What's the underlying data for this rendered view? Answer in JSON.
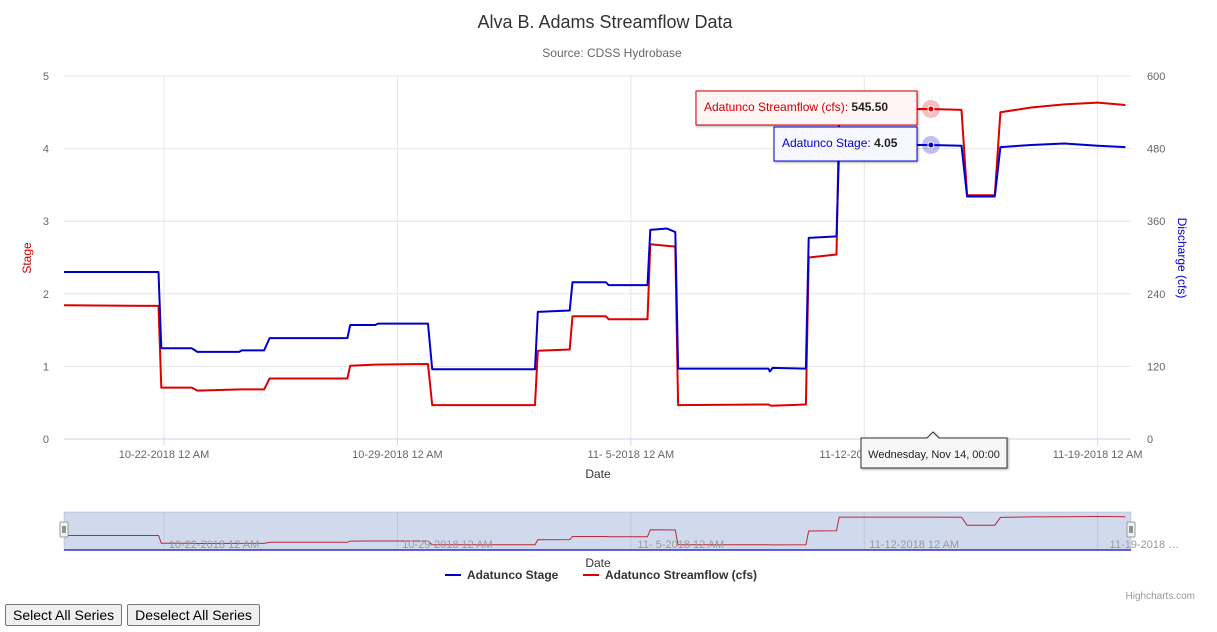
{
  "chart_data": {
    "type": "line",
    "title": "Alva B. Adams Streamflow Data",
    "subtitle": "Source: CDSS Hydrobase",
    "xlabel": "Date",
    "x_ticks": [
      "10-22-2018 12 AM",
      "10-29-2018 12 AM",
      "11- 5-2018 12 AM",
      "11-12-2018 12 AM",
      "11-19-2018 12 AM"
    ],
    "x_range_days": [
      "10-19-2018",
      "11-20-2018"
    ],
    "y_left": {
      "label": "Stage",
      "ticks": [
        0,
        1,
        2,
        3,
        4,
        5
      ],
      "range": [
        0,
        5
      ],
      "color": "#cc0000"
    },
    "y_right": {
      "label": "Discharge (cfs)",
      "ticks": [
        0,
        120,
        240,
        360,
        480,
        600
      ],
      "range": [
        0,
        600
      ],
      "color": "#0000cc"
    },
    "grid": true,
    "legend_position": "bottom-center",
    "series": [
      {
        "name": "Adatunco Stage",
        "color": "#0000cc",
        "axis": "left",
        "points": [
          [
            "10-19-2018 00:00",
            2.3
          ],
          [
            "10-21-2018 20:00",
            2.3
          ],
          [
            "10-21-2018 22:00",
            1.25
          ],
          [
            "10-22-2018 20:00",
            1.25
          ],
          [
            "10-23-2018 00:00",
            1.2
          ],
          [
            "10-24-2018 06:00",
            1.2
          ],
          [
            "10-24-2018 08:00",
            1.22
          ],
          [
            "10-25-2018 00:00",
            1.22
          ],
          [
            "10-25-2018 04:00",
            1.39
          ],
          [
            "10-27-2018 12:00",
            1.39
          ],
          [
            "10-27-2018 14:00",
            1.57
          ],
          [
            "10-28-2018 08:00",
            1.57
          ],
          [
            "10-28-2018 10:00",
            1.59
          ],
          [
            "10-29-2018 22:00",
            1.59
          ],
          [
            "10-30-2018 01:00",
            0.96
          ],
          [
            "11-2-2018 03:00",
            0.96
          ],
          [
            "11-2-2018 05:00",
            1.75
          ],
          [
            "11-3-2018 04:00",
            1.77
          ],
          [
            "11-3-2018 06:00",
            2.16
          ],
          [
            "11-4-2018 06:00",
            2.16
          ],
          [
            "11-4-2018 08:00",
            2.12
          ],
          [
            "11-5-2018 12:00",
            2.12
          ],
          [
            "11-5-2018 14:00",
            2.88
          ],
          [
            "11-6-2018 02:00",
            2.9
          ],
          [
            "11-6-2018 08:00",
            2.85
          ],
          [
            "11-6-2018 10:00",
            0.97
          ],
          [
            "11-9-2018 03:00",
            0.97
          ],
          [
            "11-9-2018 04:00",
            0.93
          ],
          [
            "11-9-2018 06:00",
            0.98
          ],
          [
            "11-10-2018 06:00",
            0.97
          ],
          [
            "11-10-2018 08:00",
            2.77
          ],
          [
            "11-11-2018 04:00",
            2.79
          ],
          [
            "11-11-2018 06:00",
            4.05
          ],
          [
            "11-13-2018 08:00",
            4.05
          ],
          [
            "11-14-2018 00:00",
            4.05
          ],
          [
            "11-14-2018 22:00",
            4.04
          ],
          [
            "11-15-2018 02:00",
            3.34
          ],
          [
            "11-15-2018 22:00",
            3.34
          ],
          [
            "11-16-2018 02:00",
            4.02
          ],
          [
            "11-17-2018 00:00",
            4.05
          ],
          [
            "11-18-2018 00:00",
            4.07
          ],
          [
            "11-19-2018 00:00",
            4.04
          ],
          [
            "11-19-2018 20:00",
            4.02
          ]
        ]
      },
      {
        "name": "Adatunco Streamflow (cfs)",
        "color": "#dd0000",
        "axis": "right",
        "points": [
          [
            "10-19-2018 00:00",
            221
          ],
          [
            "10-21-2018 20:00",
            220
          ],
          [
            "10-21-2018 22:00",
            85
          ],
          [
            "10-22-2018 20:00",
            85
          ],
          [
            "10-23-2018 00:00",
            80
          ],
          [
            "10-24-2018 08:00",
            82
          ],
          [
            "10-25-2018 00:00",
            82
          ],
          [
            "10-25-2018 04:00",
            100
          ],
          [
            "10-27-2018 12:00",
            100
          ],
          [
            "10-27-2018 14:00",
            121
          ],
          [
            "10-28-2018 08:00",
            123
          ],
          [
            "10-29-2018 22:00",
            124
          ],
          [
            "10-30-2018 01:00",
            56
          ],
          [
            "11-2-2018 03:00",
            56
          ],
          [
            "11-2-2018 05:00",
            146
          ],
          [
            "11-3-2018 04:00",
            148
          ],
          [
            "11-3-2018 06:00",
            203
          ],
          [
            "11-4-2018 06:00",
            203
          ],
          [
            "11-4-2018 08:00",
            198
          ],
          [
            "11-5-2018 12:00",
            198
          ],
          [
            "11-5-2018 14:00",
            322
          ],
          [
            "11-6-2018 08:00",
            318
          ],
          [
            "11-6-2018 10:00",
            56
          ],
          [
            "11-9-2018 03:00",
            57
          ],
          [
            "11-9-2018 05:00",
            55
          ],
          [
            "11-10-2018 06:00",
            57
          ],
          [
            "11-10-2018 08:00",
            300
          ],
          [
            "11-11-2018 04:00",
            305
          ],
          [
            "11-11-2018 06:00",
            545
          ],
          [
            "11-14-2018 00:00",
            545.5
          ],
          [
            "11-14-2018 22:00",
            544
          ],
          [
            "11-15-2018 02:00",
            403
          ],
          [
            "11-15-2018 22:00",
            403
          ],
          [
            "11-16-2018 02:00",
            540
          ],
          [
            "11-17-2018 00:00",
            548
          ],
          [
            "11-18-2018 00:00",
            553
          ],
          [
            "11-19-2018 00:00",
            556
          ],
          [
            "11-19-2018 20:00",
            552
          ]
        ]
      }
    ],
    "tooltip": {
      "header": "Wednesday, Nov 14, 00:00",
      "streamflow_label": "Adatunco Streamflow (cfs): ",
      "streamflow_value": "545.50",
      "stage_label": "Adatunco Stage: ",
      "stage_value": "4.05"
    },
    "navigator": {
      "xlabel": "Date",
      "x_ticks": [
        "10-22-2018 12 AM",
        "10-29-2018 12 AM",
        "11- 5-2018 12 AM",
        "11-12-2018 12 AM",
        "11-19-2018 …"
      ]
    }
  },
  "buttons": {
    "select_all": "Select All Series",
    "deselect_all": "Deselect All Series"
  },
  "credits": "Highcharts.com"
}
